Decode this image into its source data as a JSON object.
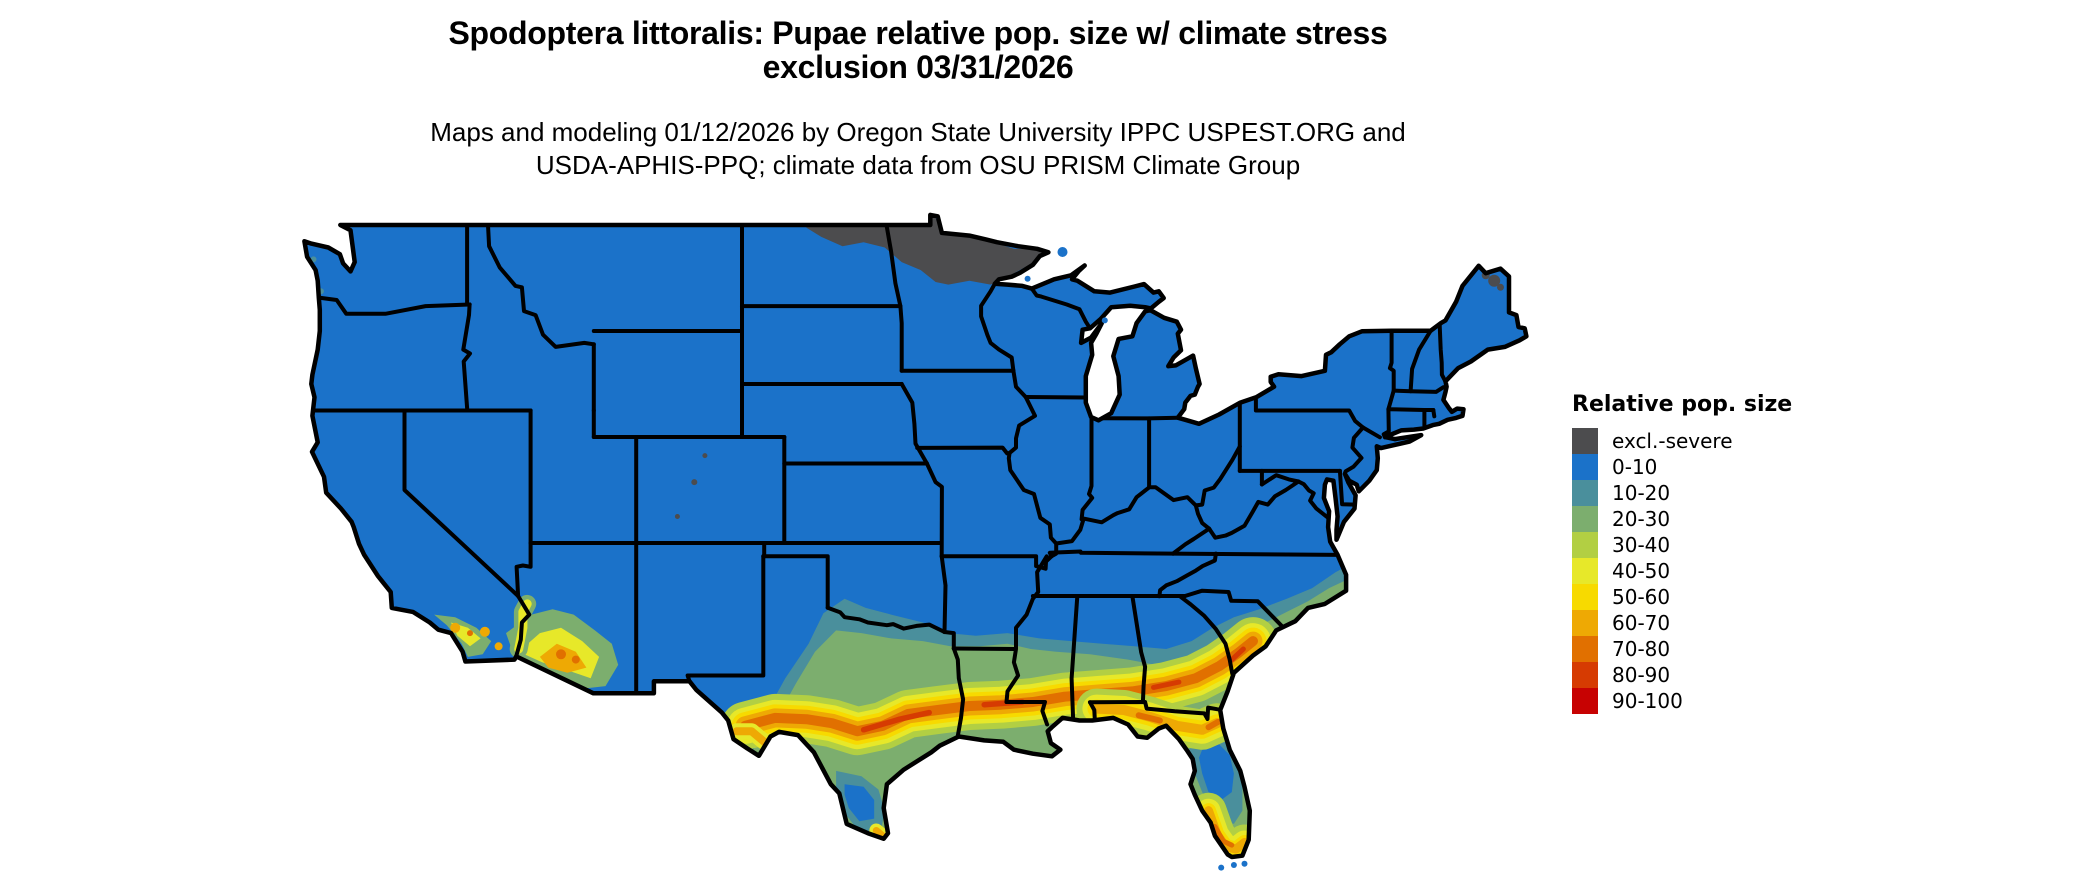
{
  "title": {
    "line1": "Spodoptera littoralis: Pupae relative pop. size w/ climate stress",
    "line2": "exclusion 03/31/2026"
  },
  "subtitle": {
    "line1": "Maps and modeling 01/12/2026 by Oregon State University IPPC USPEST.ORG and",
    "line2": "USDA-APHIS-PPQ; climate data from OSU PRISM Climate Group"
  },
  "legend": {
    "title": "Relative pop. size",
    "entries": [
      {
        "key": "excl",
        "label": "excl.-severe",
        "color": "#4c4c4e"
      },
      {
        "key": "c0",
        "label": "0-10",
        "color": "#1b72c9"
      },
      {
        "key": "c10",
        "label": "10-20",
        "color": "#4a8f9c"
      },
      {
        "key": "c20",
        "label": "20-30",
        "color": "#7cae6e"
      },
      {
        "key": "c30",
        "label": "30-40",
        "color": "#b2cf43"
      },
      {
        "key": "c40",
        "label": "40-50",
        "color": "#e7e829"
      },
      {
        "key": "c50",
        "label": "50-60",
        "color": "#f7da00"
      },
      {
        "key": "c60",
        "label": "60-70",
        "color": "#eea904"
      },
      {
        "key": "c70",
        "label": "70-80",
        "color": "#e17000"
      },
      {
        "key": "c80",
        "label": "80-90",
        "color": "#d63b02"
      },
      {
        "key": "c90",
        "label": "90-100",
        "color": "#c70202"
      }
    ]
  },
  "map": {
    "region": "Contiguous United States",
    "kind": "choropleth raster of relative population size classes",
    "border_color": "#000000",
    "background_color": "#ffffff",
    "base_class": "0-10",
    "regions": [
      {
        "area": "Most of the contiguous US",
        "class": "0-10"
      },
      {
        "area": "Northern North Dakota and northern Minnesota",
        "class": "excl.-severe"
      },
      {
        "area": "Scattered spots in northern Maine and Colorado Rockies",
        "class": "excl.-severe"
      },
      {
        "area": "Gulf Coast corridor from west Texas through Louisiana, Mississippi, Alabama, Georgia to coastal South Carolina",
        "class": "30-90 banded, warmest core 70-90"
      },
      {
        "area": "Central Texas east-west band",
        "class": "40-80"
      },
      {
        "area": "Southern Arizona and southeastern California",
        "class": "20-80 patches"
      },
      {
        "area": "Florida panhandle and north Florida",
        "class": "30-80"
      },
      {
        "area": "Central Florida",
        "class": "0-20"
      },
      {
        "area": "South Florida",
        "class": "30-80"
      },
      {
        "area": "Coastal plain of the Carolinas",
        "class": "10-30 fringe"
      }
    ]
  }
}
